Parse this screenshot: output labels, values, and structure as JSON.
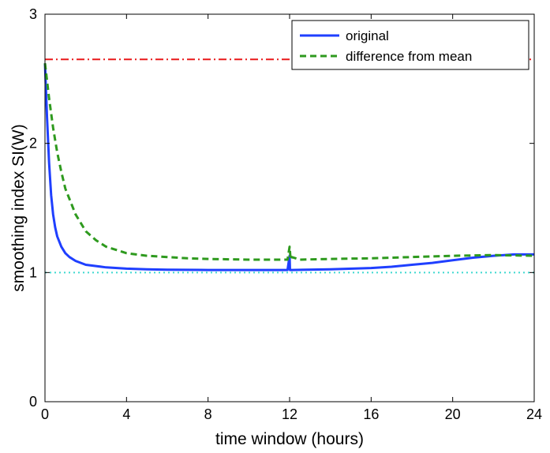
{
  "chart_data": {
    "type": "line",
    "xlabel": "time window (hours)",
    "ylabel": "smoothing index SI(W)",
    "xlim": [
      0,
      24
    ],
    "ylim": [
      0,
      3
    ],
    "xticks": [
      0,
      4,
      8,
      12,
      16,
      20,
      24
    ],
    "yticks": [
      0,
      1,
      2,
      3
    ],
    "grid": false,
    "legend": "top-right",
    "series": [
      {
        "name": "original",
        "color": "#1f3fff",
        "style": "solid",
        "x": [
          0.0,
          0.1,
          0.2,
          0.3,
          0.4,
          0.5,
          0.6,
          0.8,
          1.0,
          1.2,
          1.5,
          2.0,
          2.5,
          3.0,
          4.0,
          5.0,
          6.0,
          8.0,
          10.0,
          11.9,
          12.0,
          12.02,
          12.1,
          14.0,
          16.0,
          17.0,
          18.0,
          19.0,
          20.0,
          21.0,
          22.0,
          23.0,
          24.0
        ],
        "values": [
          2.62,
          2.2,
          1.85,
          1.6,
          1.45,
          1.35,
          1.28,
          1.2,
          1.15,
          1.12,
          1.09,
          1.06,
          1.05,
          1.04,
          1.03,
          1.025,
          1.022,
          1.02,
          1.02,
          1.02,
          1.13,
          1.02,
          1.02,
          1.025,
          1.035,
          1.045,
          1.06,
          1.075,
          1.095,
          1.115,
          1.13,
          1.14,
          1.14
        ]
      },
      {
        "name": "difference from mean",
        "color": "#2e9a1e",
        "style": "dashed",
        "x": [
          0.0,
          0.2,
          0.4,
          0.6,
          0.8,
          1.0,
          1.5,
          2.0,
          2.5,
          3.0,
          4.0,
          5.0,
          6.0,
          7.0,
          8.0,
          10.0,
          11.9,
          12.0,
          12.05,
          12.1,
          12.5,
          14.0,
          16.0,
          18.0,
          20.0,
          22.0,
          24.0
        ],
        "values": [
          2.62,
          2.35,
          2.12,
          1.93,
          1.78,
          1.65,
          1.45,
          1.32,
          1.25,
          1.2,
          1.15,
          1.13,
          1.12,
          1.11,
          1.105,
          1.1,
          1.1,
          1.2,
          1.1,
          1.12,
          1.1,
          1.105,
          1.11,
          1.12,
          1.13,
          1.135,
          1.13
        ]
      }
    ],
    "reference_lines": [
      {
        "y": 2.65,
        "color": "#e8191a",
        "style": "dashdot"
      },
      {
        "y": 1.0,
        "color": "#3fd9d0",
        "style": "dotted"
      }
    ]
  }
}
